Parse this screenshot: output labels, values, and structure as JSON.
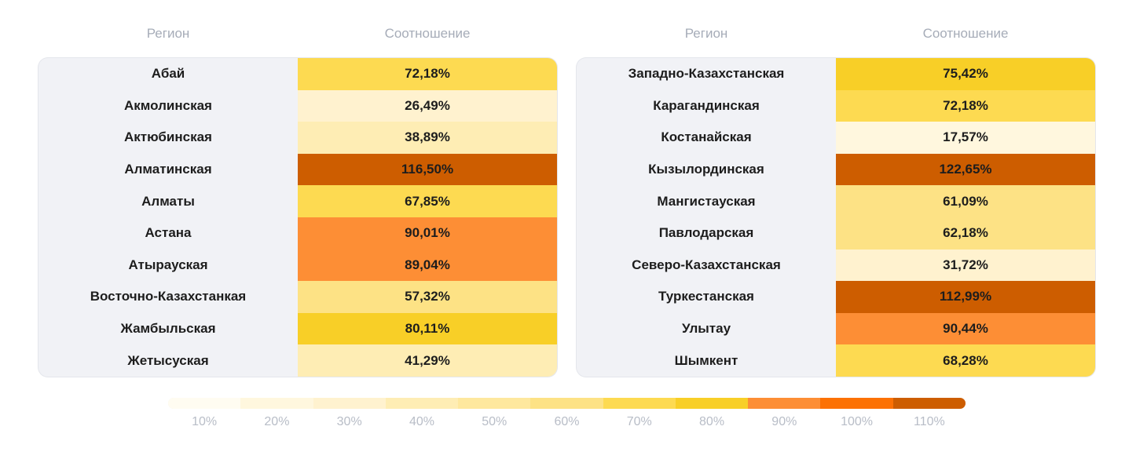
{
  "headers": {
    "left": {
      "region": "Регион",
      "ratio": "Соотношение"
    },
    "right": {
      "region": "Регион",
      "ratio": "Соотношение"
    }
  },
  "chart_data": {
    "type": "table",
    "columns": [
      "Регион",
      "Соотношение"
    ],
    "left_rows": [
      {
        "region": "Абай",
        "label": "72,18%",
        "value": 72.18
      },
      {
        "region": "Акмолинская",
        "label": "26,49%",
        "value": 26.49
      },
      {
        "region": "Актюбинская",
        "label": "38,89%",
        "value": 38.89
      },
      {
        "region": "Алматинская",
        "label": "116,50%",
        "value": 116.5
      },
      {
        "region": "Алматы",
        "label": "67,85%",
        "value": 67.85
      },
      {
        "region": "Астана",
        "label": "90,01%",
        "value": 90.01
      },
      {
        "region": "Атырауская",
        "label": "89,04%",
        "value": 89.04
      },
      {
        "region": "Восточно-Казахстанкая",
        "label": "57,32%",
        "value": 57.32
      },
      {
        "region": "Жамбыльская",
        "label": "80,11%",
        "value": 80.11
      },
      {
        "region": "Жетысуская",
        "label": "41,29%",
        "value": 41.29
      }
    ],
    "right_rows": [
      {
        "region": "Западно-Казахстанская",
        "label": "75,42%",
        "value": 75.42
      },
      {
        "region": "Карагандинская",
        "label": "72,18%",
        "value": 72.18
      },
      {
        "region": "Костанайская",
        "label": "17,57%",
        "value": 17.57
      },
      {
        "region": "Кызылординская",
        "label": "122,65%",
        "value": 122.65
      },
      {
        "region": "Мангистауская",
        "label": "61,09%",
        "value": 61.09
      },
      {
        "region": "Павлодарская",
        "label": "62,18%",
        "value": 62.18
      },
      {
        "region": "Северо-Казахстанская",
        "label": "31,72%",
        "value": 31.72
      },
      {
        "region": "Туркестанская",
        "label": "112,99%",
        "value": 112.99
      },
      {
        "region": "Улытау",
        "label": "90,44%",
        "value": 90.44
      },
      {
        "region": "Шымкент",
        "label": "68,28%",
        "value": 68.28
      }
    ],
    "color_scale": {
      "thresholds": [
        10,
        20,
        30,
        40,
        50,
        60,
        70,
        80,
        90,
        100,
        110
      ],
      "colors": [
        "#fffcf1",
        "#fff7de",
        "#fff2cf",
        "#feedb4",
        "#fee89e",
        "#fde285",
        "#fdda51",
        "#f8cf27",
        "#fd8e35",
        "#fc7103",
        "#cd5d00"
      ],
      "tick_labels": [
        "10%",
        "20%",
        "30%",
        "40%",
        "50%",
        "60%",
        "70%",
        "80%",
        "90%",
        "100%",
        "110%"
      ]
    }
  }
}
